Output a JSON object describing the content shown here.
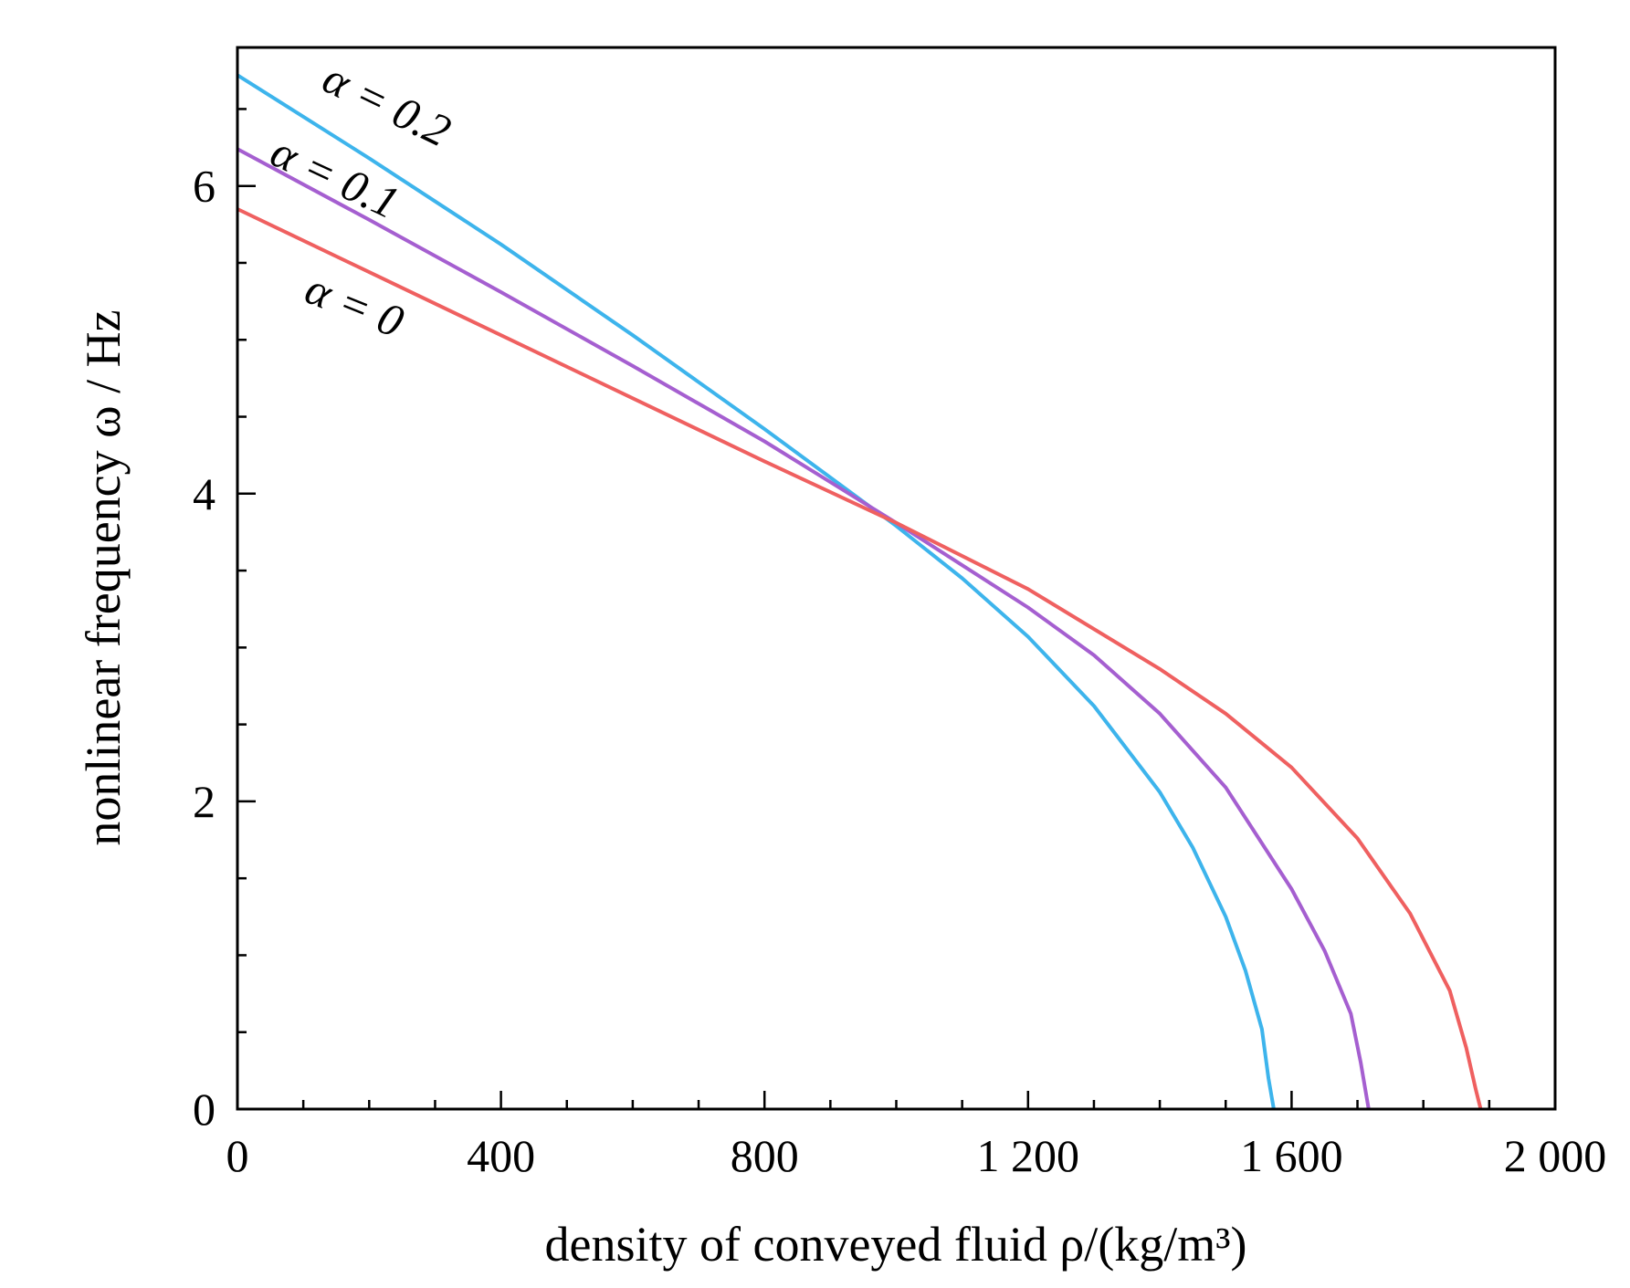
{
  "chart_data": {
    "type": "line",
    "xlabel": "density of conveyed fluid ρ/(kg/m³)",
    "ylabel": "nonlinear frequency ω / Hz",
    "xlim": [
      0,
      2000
    ],
    "ylim": [
      0,
      6.9
    ],
    "x_ticks": [
      0,
      400,
      800,
      1200,
      1600,
      2000
    ],
    "x_tick_labels": [
      "0",
      "400",
      "800",
      "1 200",
      "1 600",
      "2 000"
    ],
    "y_ticks": [
      0,
      2,
      4,
      6
    ],
    "y_tick_labels": [
      "0",
      "2",
      "4",
      "6"
    ],
    "x_minor_step": 100,
    "y_minor_step": 0.5,
    "grid": false,
    "legend": "none",
    "series": [
      {
        "name": "α = 0.2",
        "color": "#3db4ec",
        "points": [
          [
            0,
            6.72
          ],
          [
            200,
            6.18
          ],
          [
            400,
            5.62
          ],
          [
            600,
            5.03
          ],
          [
            800,
            4.42
          ],
          [
            1000,
            3.79
          ],
          [
            1100,
            3.45
          ],
          [
            1200,
            3.07
          ],
          [
            1300,
            2.62
          ],
          [
            1400,
            2.06
          ],
          [
            1450,
            1.7
          ],
          [
            1500,
            1.25
          ],
          [
            1530,
            0.9
          ],
          [
            1555,
            0.52
          ],
          [
            1565,
            0.2
          ],
          [
            1573,
            0.0
          ]
        ]
      },
      {
        "name": "α = 0.1",
        "color": "#a55fd0",
        "points": [
          [
            0,
            6.24
          ],
          [
            200,
            5.78
          ],
          [
            400,
            5.31
          ],
          [
            600,
            4.83
          ],
          [
            800,
            4.34
          ],
          [
            1000,
            3.81
          ],
          [
            1200,
            3.26
          ],
          [
            1300,
            2.95
          ],
          [
            1400,
            2.57
          ],
          [
            1500,
            2.09
          ],
          [
            1600,
            1.43
          ],
          [
            1650,
            1.03
          ],
          [
            1690,
            0.62
          ],
          [
            1705,
            0.3
          ],
          [
            1717,
            0.0
          ]
        ]
      },
      {
        "name": "α = 0",
        "color": "#ef6060",
        "points": [
          [
            0,
            5.85
          ],
          [
            200,
            5.44
          ],
          [
            400,
            5.03
          ],
          [
            600,
            4.62
          ],
          [
            800,
            4.21
          ],
          [
            1000,
            3.81
          ],
          [
            1200,
            3.38
          ],
          [
            1400,
            2.86
          ],
          [
            1500,
            2.57
          ],
          [
            1600,
            2.22
          ],
          [
            1700,
            1.76
          ],
          [
            1780,
            1.27
          ],
          [
            1840,
            0.77
          ],
          [
            1865,
            0.4
          ],
          [
            1880,
            0.12
          ],
          [
            1887,
            0.0
          ]
        ]
      }
    ],
    "annotations": [
      {
        "text": "α = 0.2",
        "series": "α = 0.2"
      },
      {
        "text": "α = 0.1",
        "series": "α = 0.1"
      },
      {
        "text": "α = 0",
        "series": "α = 0"
      }
    ]
  }
}
